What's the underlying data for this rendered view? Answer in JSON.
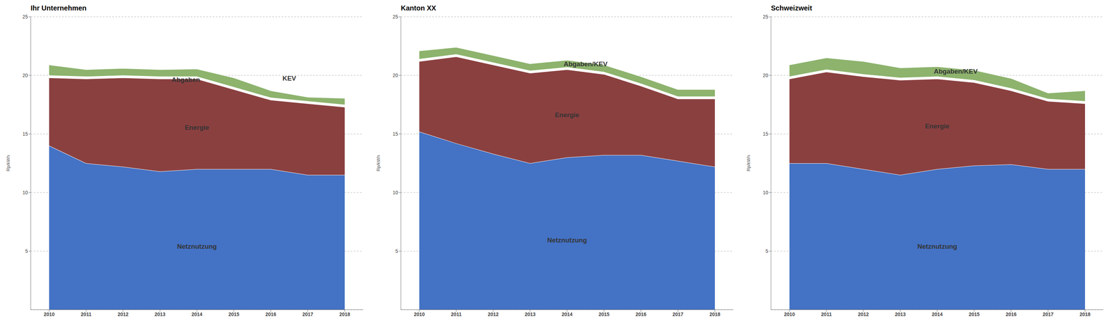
{
  "chart_data": [
    {
      "type": "area",
      "title": "Ihr Unternehmen",
      "stacked": true,
      "grid": true,
      "ylabel": "Rp/kWh",
      "x": [
        2010,
        2011,
        2012,
        2013,
        2014,
        2015,
        2016,
        2017,
        2018
      ],
      "xlim": [
        2009.5,
        2018.5
      ],
      "xticks": [
        2010,
        2011,
        2012,
        2013,
        2014,
        2015,
        2016,
        2017,
        2018
      ],
      "ylim": [
        0,
        25
      ],
      "yticks": [
        5,
        10,
        15,
        20,
        25
      ],
      "series": [
        {
          "name": "Netznutzung",
          "color": "#4472C4",
          "values": [
            14.0,
            12.5,
            12.2,
            11.8,
            12.0,
            12.0,
            12.0,
            11.5,
            11.5
          ]
        },
        {
          "name": "Energie",
          "color": "#8B4040",
          "values": [
            5.8,
            7.2,
            7.6,
            7.9,
            7.7,
            6.8,
            5.9,
            6.1,
            5.8
          ]
        },
        {
          "name": "Abgaben",
          "color": "#FFFFFF",
          "values": [
            0.2,
            0.2,
            0.2,
            0.2,
            0.2,
            0.2,
            0.2,
            0.2,
            0.2
          ]
        },
        {
          "name": "KEV",
          "color": "#8DB36D",
          "values": [
            0.9,
            0.6,
            0.6,
            0.6,
            0.65,
            0.8,
            0.6,
            0.35,
            0.55
          ]
        }
      ]
    },
    {
      "type": "area",
      "title": "Kanton XX",
      "stacked": true,
      "grid": true,
      "ylabel": "Rp/kWh",
      "x": [
        2010,
        2011,
        2012,
        2013,
        2014,
        2015,
        2016,
        2017,
        2018
      ],
      "xlim": [
        2009.5,
        2018.5
      ],
      "xticks": [
        2010,
        2011,
        2012,
        2013,
        2014,
        2015,
        2016,
        2017,
        2018
      ],
      "ylim": [
        0,
        25
      ],
      "yticks": [
        5,
        10,
        15,
        20,
        25
      ],
      "series": [
        {
          "name": "Netznutzung",
          "color": "#4472C4",
          "values": [
            15.2,
            14.2,
            13.3,
            12.5,
            13.0,
            13.2,
            13.2,
            12.7,
            12.2
          ]
        },
        {
          "name": "Energie",
          "color": "#8B4040",
          "values": [
            6.0,
            7.4,
            7.6,
            7.7,
            7.5,
            6.9,
            5.9,
            5.3,
            5.8
          ]
        },
        {
          "name": null,
          "color": "#FFFFFF",
          "values": [
            0.2,
            0.2,
            0.2,
            0.2,
            0.2,
            0.2,
            0.2,
            0.2,
            0.2
          ]
        },
        {
          "name": "Abgaben/KEV",
          "color": "#8DB36D",
          "values": [
            0.7,
            0.6,
            0.6,
            0.6,
            0.6,
            0.6,
            0.6,
            0.6,
            0.6
          ]
        }
      ]
    },
    {
      "type": "area",
      "title": "Schweizweit",
      "stacked": true,
      "grid": true,
      "ylabel": "Rp/kWh",
      "x": [
        2010,
        2011,
        2012,
        2013,
        2014,
        2015,
        2016,
        2017,
        2018
      ],
      "xlim": [
        2009.5,
        2018.5
      ],
      "xticks": [
        2010,
        2011,
        2012,
        2013,
        2014,
        2015,
        2016,
        2017,
        2018
      ],
      "ylim": [
        0,
        25
      ],
      "yticks": [
        5,
        10,
        15,
        20,
        25
      ],
      "series": [
        {
          "name": "Netznutzung",
          "color": "#4472C4",
          "values": [
            12.5,
            12.5,
            12.0,
            11.5,
            12.0,
            12.3,
            12.4,
            12.0,
            12.0
          ]
        },
        {
          "name": "Energie",
          "color": "#8B4040",
          "values": [
            7.2,
            7.8,
            7.9,
            8.1,
            7.7,
            7.1,
            6.3,
            5.8,
            5.6
          ]
        },
        {
          "name": null,
          "color": "#FFFFFF",
          "values": [
            0.2,
            0.2,
            0.2,
            0.2,
            0.2,
            0.2,
            0.2,
            0.2,
            0.2
          ]
        },
        {
          "name": "Abgaben/KEV",
          "color": "#8DB36D",
          "values": [
            1.0,
            1.0,
            1.1,
            0.85,
            0.85,
            0.85,
            0.85,
            0.5,
            0.9
          ]
        }
      ]
    }
  ]
}
